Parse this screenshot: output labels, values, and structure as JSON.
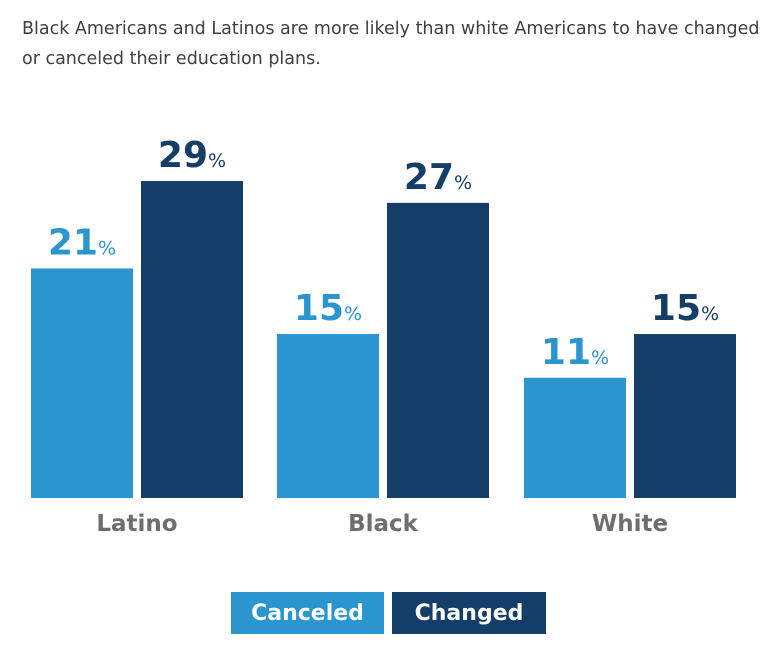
{
  "title": "Black Americans and Latinos are more likely than white Americans to have changed or canceled their education plans.",
  "colors": {
    "canceled": "#2a95ce",
    "changed": "#143e68",
    "axis_label": "#6e6e6e",
    "title": "#3f3f3f"
  },
  "chart_data": {
    "type": "bar",
    "title": "Black Americans and Latinos are more likely than white Americans to have changed or canceled their education plans.",
    "categories": [
      "Latino",
      "Black",
      "White"
    ],
    "series": [
      {
        "name": "Canceled",
        "values": [
          21,
          15,
          11
        ],
        "color": "#2a95ce"
      },
      {
        "name": "Changed",
        "values": [
          29,
          27,
          15
        ],
        "color": "#143e68"
      }
    ],
    "unit": "%",
    "ylim": [
      0,
      30
    ],
    "grid": false,
    "legend": "bottom-center",
    "xlabel": "",
    "ylabel": ""
  },
  "legend": {
    "canceled": "Canceled",
    "changed": "Changed"
  }
}
